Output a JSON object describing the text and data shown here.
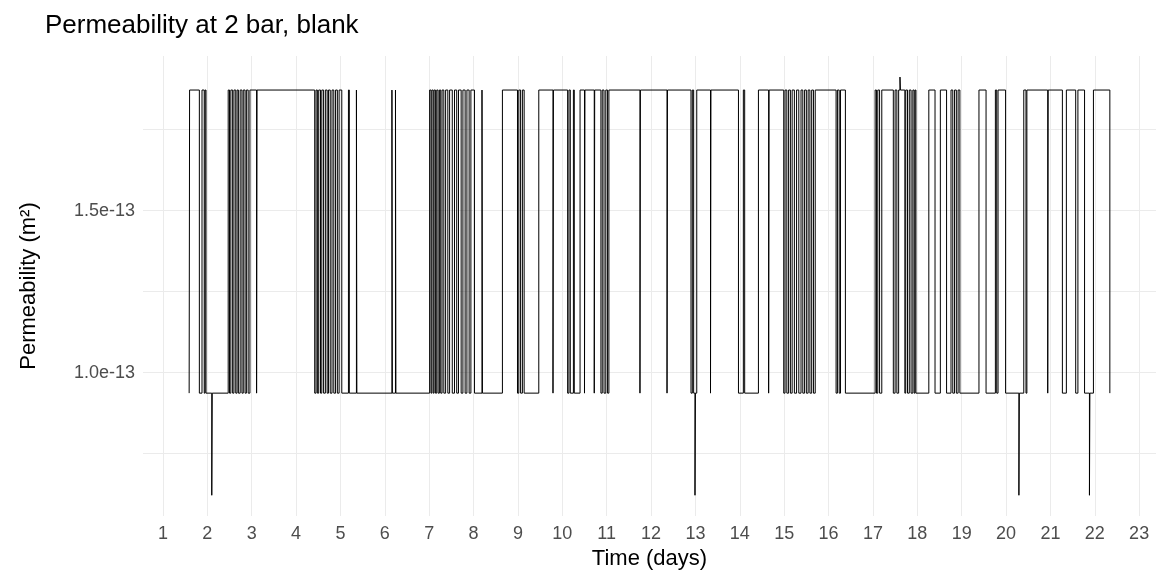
{
  "chart_data": {
    "type": "step",
    "title": "Permeability at 2 bar, blank",
    "xlabel": "Time (days)",
    "ylabel": "Permeability (m²)",
    "xlim": [
      0.55,
      23.38
    ],
    "xticks": [
      1,
      2,
      3,
      4,
      5,
      6,
      7,
      8,
      9,
      10,
      11,
      12,
      13,
      14,
      15,
      16,
      17,
      18,
      19,
      20,
      21,
      22,
      23
    ],
    "ylim": [
      5.56e-14,
      1.975e-13
    ],
    "yticks": [
      {
        "value": 7.5e-14,
        "label": null
      },
      {
        "value": 1e-13,
        "label": "1.0e-13"
      },
      {
        "value": 1.25e-13,
        "label": null
      },
      {
        "value": 1.5e-13,
        "label": "1.5e-13"
      },
      {
        "value": 1.75e-13,
        "label": null
      }
    ],
    "grid": true,
    "series": [
      {
        "color": "#000000",
        "x": [
          1.59,
          1.6,
          1.82,
          1.88,
          1.93,
          1.95,
          1.97,
          2.1,
          2.11,
          2.47,
          2.5,
          2.53,
          2.57,
          2.6,
          2.64,
          2.67,
          2.7,
          2.74,
          2.78,
          2.81,
          2.85,
          2.88,
          2.92,
          2.96,
          3.11,
          3.12,
          4.42,
          4.45,
          4.48,
          4.51,
          4.55,
          4.58,
          4.62,
          4.66,
          4.7,
          4.73,
          4.77,
          4.81,
          4.85,
          4.89,
          4.93,
          4.97,
          5.03,
          5.18,
          5.2,
          5.36,
          5.37,
          6.16,
          6.17,
          6.24,
          6.25,
          7.01,
          7.04,
          7.06,
          7.09,
          7.11,
          7.14,
          7.17,
          7.2,
          7.23,
          7.26,
          7.29,
          7.33,
          7.37,
          7.42,
          7.46,
          7.52,
          7.57,
          7.62,
          7.66,
          7.72,
          7.76,
          7.81,
          7.85,
          7.9,
          7.94,
          8.02,
          8.19,
          8.2,
          8.65,
          8.99,
          9.02,
          9.06,
          9.1,
          9.14,
          9.47,
          9.79,
          9.8,
          10.12,
          10.15,
          10.18,
          10.25,
          10.27,
          10.4,
          10.5,
          10.51,
          10.72,
          10.73,
          10.87,
          10.9,
          10.94,
          10.98,
          11.02,
          11.05,
          11.75,
          11.76,
          12.36,
          12.37,
          12.9,
          12.93,
          12.96,
          12.99,
          13.0,
          13.03,
          13.34,
          13.35,
          13.97,
          14.08,
          14.11,
          14.42,
          14.65,
          14.66,
          14.99,
          15.02,
          15.06,
          15.1,
          15.14,
          15.18,
          15.23,
          15.28,
          15.33,
          15.38,
          15.42,
          15.46,
          15.5,
          15.54,
          15.58,
          15.62,
          15.66,
          15.7,
          16.17,
          16.2,
          16.24,
          16.27,
          16.38,
          17.05,
          17.08,
          17.11,
          17.15,
          17.2,
          17.46,
          17.5,
          17.54,
          17.58,
          17.61,
          17.62,
          17.72,
          17.74,
          17.78,
          17.82,
          17.86,
          17.9,
          17.93,
          17.95,
          17.97,
          18.26,
          18.4,
          18.52,
          18.66,
          18.76,
          18.8,
          18.84,
          18.88,
          18.92,
          18.96,
          19.39,
          19.55,
          19.76,
          19.79,
          19.82,
          19.99,
          20.29,
          20.3,
          20.4,
          20.45,
          20.47,
          20.94,
          20.95,
          21.27,
          21.36,
          21.57,
          21.62,
          21.77,
          21.88,
          21.89,
          21.97,
          22.34
        ],
        "values": [
          9.35e-14,
          1.87e-13,
          9.35e-14,
          1.87e-13,
          9.35e-14,
          1.87e-13,
          9.35e-14,
          6.2e-14,
          9.35e-14,
          1.87e-13,
          9.35e-14,
          1.87e-13,
          9.35e-14,
          1.87e-13,
          9.35e-14,
          1.87e-13,
          9.35e-14,
          1.87e-13,
          9.35e-14,
          1.87e-13,
          9.35e-14,
          1.87e-13,
          9.35e-14,
          1.87e-13,
          9.35e-14,
          1.87e-13,
          9.35e-14,
          1.87e-13,
          9.35e-14,
          1.87e-13,
          9.35e-14,
          1.87e-13,
          9.35e-14,
          1.87e-13,
          9.35e-14,
          1.87e-13,
          9.35e-14,
          1.87e-13,
          9.35e-14,
          1.87e-13,
          9.35e-14,
          1.87e-13,
          9.35e-14,
          1.87e-13,
          9.35e-14,
          1.87e-13,
          9.35e-14,
          1.87e-13,
          9.35e-14,
          1.87e-13,
          9.35e-14,
          1.87e-13,
          9.35e-14,
          1.87e-13,
          9.35e-14,
          1.87e-13,
          9.35e-14,
          1.87e-13,
          9.35e-14,
          1.87e-13,
          9.35e-14,
          1.87e-13,
          9.35e-14,
          1.87e-13,
          9.35e-14,
          1.87e-13,
          9.35e-14,
          1.87e-13,
          9.35e-14,
          1.87e-13,
          9.35e-14,
          1.87e-13,
          9.35e-14,
          1.87e-13,
          9.35e-14,
          1.87e-13,
          9.35e-14,
          1.87e-13,
          9.35e-14,
          1.87e-13,
          9.35e-14,
          1.87e-13,
          9.35e-14,
          1.87e-13,
          9.35e-14,
          1.87e-13,
          9.35e-14,
          1.87e-13,
          9.35e-14,
          1.87e-13,
          9.35e-14,
          1.87e-13,
          9.35e-14,
          1.87e-13,
          9.35e-14,
          1.87e-13,
          9.35e-14,
          1.87e-13,
          9.35e-14,
          1.87e-13,
          9.35e-14,
          1.87e-13,
          9.35e-14,
          1.87e-13,
          9.35e-14,
          1.87e-13,
          9.35e-14,
          1.87e-13,
          9.35e-14,
          1.87e-13,
          9.35e-14,
          6.2e-14,
          9.35e-14,
          1.87e-13,
          9.35e-14,
          1.87e-13,
          9.35e-14,
          1.87e-13,
          9.35e-14,
          1.87e-13,
          9.35e-14,
          1.87e-13,
          9.35e-14,
          1.87e-13,
          9.35e-14,
          1.87e-13,
          9.35e-14,
          1.87e-13,
          9.35e-14,
          1.87e-13,
          9.35e-14,
          1.87e-13,
          9.35e-14,
          1.87e-13,
          9.35e-14,
          1.87e-13,
          9.35e-14,
          1.87e-13,
          9.35e-14,
          1.87e-13,
          9.35e-14,
          1.87e-13,
          9.35e-14,
          1.87e-13,
          9.35e-14,
          1.87e-13,
          9.35e-14,
          1.87e-13,
          9.35e-14,
          1.87e-13,
          9.35e-14,
          1.87e-13,
          9.35e-14,
          1.87e-13,
          1.91e-13,
          1.87e-13,
          9.35e-14,
          1.87e-13,
          9.35e-14,
          1.87e-13,
          9.35e-14,
          1.87e-13,
          9.35e-14,
          1.87e-13,
          9.35e-14,
          1.87e-13,
          9.35e-14,
          1.87e-13,
          9.35e-14,
          1.87e-13,
          9.35e-14,
          1.87e-13,
          9.35e-14,
          1.87e-13,
          9.35e-14,
          1.87e-13,
          9.35e-14,
          1.87e-13,
          9.35e-14,
          1.87e-13,
          9.35e-14,
          6.2e-14,
          9.35e-14,
          1.87e-13,
          9.35e-14,
          1.87e-13,
          9.35e-14,
          1.87e-13,
          9.35e-14,
          1.87e-13,
          9.35e-14,
          1.87e-13,
          9.35e-14,
          6.2e-14,
          9.35e-14,
          1.87e-13,
          9.35e-14
        ]
      }
    ]
  }
}
